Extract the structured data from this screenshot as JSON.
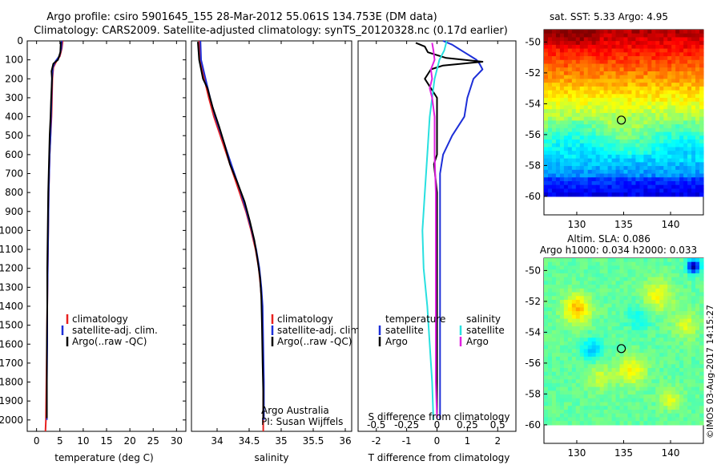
{
  "header": {
    "line1": "Argo profile: csiro 5901645_155 28-Mar-2012 55.061S 134.753E (DM data)",
    "line2": "Climatology: CARS2009. Satellite-adjusted climatology: synTS_20120328.nc (0.17d earlier)"
  },
  "colors": {
    "climatology": "#e8211f",
    "satellite": "#1d2fd8",
    "argo": "#000000",
    "sat_salinity": "#28e0e0",
    "argo_salinity": "#e020e0"
  },
  "watermark": "©IMOS 03-Aug-2017 14:15:27",
  "credits": {
    "line1": "Argo Australia",
    "line2": "PI: Susan Wijffels"
  },
  "chart_data": [
    {
      "id": "temperature",
      "type": "line",
      "xlabel": "temperature (deg C)",
      "ylabel": "",
      "xlim": [
        -2,
        32
      ],
      "ylim": [
        2060,
        0
      ],
      "xticks": [
        0,
        5,
        10,
        15,
        20,
        25,
        30
      ],
      "yticks": [
        0,
        100,
        200,
        300,
        400,
        500,
        600,
        700,
        800,
        900,
        1000,
        1100,
        1200,
        1300,
        1400,
        1500,
        1600,
        1700,
        1800,
        1900,
        2000
      ],
      "legend": [
        "climatology",
        "satellite-adj. clim.",
        "Argo(..raw -QC)"
      ],
      "legend_position": "lower-center",
      "series": [
        {
          "name": "climatology",
          "color_key": "climatology",
          "points": [
            [
              5.6,
              0
            ],
            [
              5.4,
              40
            ],
            [
              5.0,
              80
            ],
            [
              4.2,
              110
            ],
            [
              3.6,
              140
            ],
            [
              3.4,
              200
            ],
            [
              3.3,
              300
            ],
            [
              3.2,
              400
            ],
            [
              3.0,
              500
            ],
            [
              2.8,
              600
            ],
            [
              2.7,
              700
            ],
            [
              2.6,
              800
            ],
            [
              2.5,
              1000
            ],
            [
              2.4,
              1200
            ],
            [
              2.3,
              1400
            ],
            [
              2.2,
              1600
            ],
            [
              2.1,
              1800
            ],
            [
              2.0,
              2000
            ],
            [
              1.9,
              2060
            ]
          ]
        },
        {
          "name": "satellite-adj. clim.",
          "color_key": "satellite",
          "points": [
            [
              5.4,
              0
            ],
            [
              5.3,
              40
            ],
            [
              4.9,
              80
            ],
            [
              4.0,
              110
            ],
            [
              3.5,
              140
            ],
            [
              3.3,
              200
            ],
            [
              3.2,
              300
            ],
            [
              3.1,
              400
            ],
            [
              3.0,
              500
            ],
            [
              2.8,
              600
            ],
            [
              2.7,
              700
            ],
            [
              2.6,
              800
            ],
            [
              2.5,
              1000
            ],
            [
              2.4,
              1200
            ],
            [
              2.3,
              1400
            ],
            [
              2.3,
              1600
            ],
            [
              2.2,
              1800
            ],
            [
              2.2,
              2000
            ]
          ]
        },
        {
          "name": "Argo(..raw -QC)",
          "color_key": "argo",
          "points": [
            [
              5.2,
              5
            ],
            [
              5.1,
              60
            ],
            [
              4.6,
              100
            ],
            [
              3.6,
              120
            ],
            [
              3.2,
              160
            ],
            [
              3.3,
              200
            ],
            [
              3.2,
              260
            ],
            [
              3.1,
              320
            ],
            [
              3.0,
              400
            ],
            [
              2.8,
              500
            ],
            [
              2.7,
              600
            ],
            [
              2.6,
              700
            ],
            [
              2.5,
              800
            ],
            [
              2.4,
              1000
            ],
            [
              2.3,
              1200
            ],
            [
              2.3,
              1400
            ],
            [
              2.2,
              1600
            ],
            [
              2.2,
              1800
            ],
            [
              2.2,
              1990
            ]
          ]
        }
      ]
    },
    {
      "id": "salinity",
      "type": "line",
      "xlabel": "salinity",
      "xlim": [
        33.6,
        36.1
      ],
      "ylim": [
        2060,
        0
      ],
      "xticks": [
        34,
        34.5,
        35,
        35.5,
        36
      ],
      "legend": [
        "climatology",
        "satellite-adj. clim.",
        "Argo(..raw -QC)"
      ],
      "legend_position": "lower-right",
      "series": [
        {
          "name": "climatology",
          "color_key": "climatology",
          "points": [
            [
              33.72,
              0
            ],
            [
              33.74,
              100
            ],
            [
              33.8,
              200
            ],
            [
              33.87,
              300
            ],
            [
              33.95,
              400
            ],
            [
              34.05,
              500
            ],
            [
              34.15,
              600
            ],
            [
              34.25,
              700
            ],
            [
              34.35,
              800
            ],
            [
              34.45,
              900
            ],
            [
              34.53,
              1000
            ],
            [
              34.6,
              1100
            ],
            [
              34.65,
              1200
            ],
            [
              34.68,
              1300
            ],
            [
              34.7,
              1400
            ],
            [
              34.71,
              1600
            ],
            [
              34.72,
              1800
            ],
            [
              34.72,
              2060
            ]
          ]
        },
        {
          "name": "satellite-adj. clim.",
          "color_key": "satellite",
          "points": [
            [
              33.74,
              0
            ],
            [
              33.75,
              100
            ],
            [
              33.82,
              200
            ],
            [
              33.89,
              300
            ],
            [
              33.97,
              400
            ],
            [
              34.07,
              500
            ],
            [
              34.17,
              600
            ],
            [
              34.27,
              700
            ],
            [
              34.37,
              800
            ],
            [
              34.46,
              900
            ],
            [
              34.54,
              1000
            ],
            [
              34.61,
              1100
            ],
            [
              34.66,
              1200
            ],
            [
              34.69,
              1300
            ],
            [
              34.71,
              1400
            ],
            [
              34.72,
              1600
            ],
            [
              34.73,
              1800
            ],
            [
              34.73,
              2000
            ]
          ]
        },
        {
          "name": "Argo(..raw -QC)",
          "color_key": "argo",
          "points": [
            [
              33.7,
              5
            ],
            [
              33.72,
              100
            ],
            [
              33.78,
              200
            ],
            [
              33.85,
              250
            ],
            [
              33.93,
              350
            ],
            [
              34.03,
              450
            ],
            [
              34.12,
              550
            ],
            [
              34.2,
              650
            ],
            [
              34.32,
              750
            ],
            [
              34.43,
              850
            ],
            [
              34.51,
              950
            ],
            [
              34.58,
              1050
            ],
            [
              34.63,
              1150
            ],
            [
              34.67,
              1250
            ],
            [
              34.69,
              1350
            ],
            [
              34.7,
              1500
            ],
            [
              34.71,
              1700
            ],
            [
              34.72,
              1850
            ],
            [
              34.72,
              1990
            ]
          ]
        }
      ]
    },
    {
      "id": "difference",
      "type": "line",
      "xlabel": "T difference from climatology",
      "xlabel_top": "S difference from climatology",
      "xlim": [
        -2.6,
        2.6
      ],
      "ylim": [
        2060,
        0
      ],
      "xticks": [
        -2,
        -1,
        0,
        1,
        2
      ],
      "xticks_top": [
        -0.5,
        -0.25,
        0,
        0.25,
        0.5
      ],
      "xtick_labels_top": [
        "-0.5",
        "-0.25",
        "0",
        "0.25",
        "0.5"
      ],
      "legend_headers": [
        "temperature",
        "salinity"
      ],
      "legend": [
        "satellite",
        "Argo",
        "satellite",
        "Argo"
      ],
      "legend_position": "lower-center",
      "series": [
        {
          "name": "temperature satellite",
          "color_key": "satellite",
          "points": [
            [
              0.2,
              0
            ],
            [
              0.5,
              20
            ],
            [
              0.7,
              40
            ],
            [
              0.9,
              60
            ],
            [
              1.1,
              80
            ],
            [
              1.3,
              100
            ],
            [
              1.4,
              120
            ],
            [
              1.5,
              150
            ],
            [
              1.2,
              200
            ],
            [
              1.0,
              300
            ],
            [
              0.9,
              400
            ],
            [
              0.5,
              500
            ],
            [
              0.2,
              600
            ],
            [
              0.1,
              700
            ],
            [
              0.1,
              900
            ],
            [
              0.1,
              1200
            ],
            [
              0.1,
              1500
            ],
            [
              0.1,
              2000
            ]
          ]
        },
        {
          "name": "temperature Argo",
          "color_key": "argo",
          "points": [
            [
              -0.7,
              10
            ],
            [
              -0.4,
              30
            ],
            [
              -0.3,
              60
            ],
            [
              0.3,
              90
            ],
            [
              1.5,
              110
            ],
            [
              0.2,
              130
            ],
            [
              -0.2,
              150
            ],
            [
              -0.4,
              200
            ],
            [
              -0.2,
              250
            ],
            [
              0.0,
              300
            ],
            [
              0.0,
              400
            ],
            [
              0.0,
              600
            ],
            [
              -0.1,
              650
            ],
            [
              0.0,
              800
            ],
            [
              0.0,
              1000
            ],
            [
              0.0,
              1200
            ],
            [
              0.0,
              1400
            ],
            [
              0.0,
              1600
            ],
            [
              0.0,
              1800
            ],
            [
              0.0,
              1990
            ]
          ]
        },
        {
          "name": "salinity satellite",
          "color_key": "sat_salinity",
          "points": [
            [
              0.08,
              0
            ],
            [
              0.06,
              50
            ],
            [
              0.02,
              100
            ],
            [
              -0.02,
              200
            ],
            [
              -0.06,
              400
            ],
            [
              -0.08,
              600
            ],
            [
              -0.1,
              800
            ],
            [
              -0.12,
              1000
            ],
            [
              -0.11,
              1200
            ],
            [
              -0.08,
              1400
            ],
            [
              -0.06,
              1600
            ],
            [
              -0.04,
              1800
            ],
            [
              -0.03,
              2000
            ]
          ]
        },
        {
          "name": "salinity Argo",
          "color_key": "argo_salinity",
          "points": [
            [
              -0.04,
              10
            ],
            [
              -0.03,
              50
            ],
            [
              -0.02,
              100
            ],
            [
              -0.05,
              150
            ],
            [
              -0.04,
              200
            ],
            [
              -0.06,
              250
            ],
            [
              -0.04,
              300
            ],
            [
              -0.02,
              400
            ],
            [
              -0.02,
              600
            ],
            [
              -0.01,
              800
            ],
            [
              -0.01,
              1000
            ],
            [
              -0.01,
              1200
            ],
            [
              -0.01,
              1400
            ],
            [
              -0.01,
              1600
            ],
            [
              -0.01,
              1800
            ],
            [
              0.0,
              1990
            ]
          ]
        }
      ]
    },
    {
      "id": "sst_map",
      "type": "heatmap",
      "title": "sat. SST: 5.33 Argo: 4.95",
      "xlim": [
        126.5,
        143.5
      ],
      "ylim": [
        -61.2,
        -49.2
      ],
      "xticks": [
        130,
        135,
        140
      ],
      "yticks": [
        -50,
        -52,
        -54,
        -56,
        -58,
        -60
      ],
      "ytick_labels": [
        "-50",
        "-52",
        "-54",
        "-56",
        "-58",
        "-60"
      ],
      "data_extent_lat": [
        -60,
        -49.2
      ],
      "float_position": {
        "lon": 134.753,
        "lat": -55.061
      },
      "colormap": "jet"
    },
    {
      "id": "sla_map",
      "type": "heatmap",
      "title": "Altim. SLA: 0.086",
      "subtitle": "Argo h1000: 0.034 h2000: 0.033",
      "xlim": [
        126.5,
        143.5
      ],
      "ylim": [
        -61.2,
        -49.2
      ],
      "xticks": [
        130,
        135,
        140
      ],
      "yticks": [
        -50,
        -52,
        -54,
        -56,
        -58,
        -60
      ],
      "ytick_labels": [
        "-50",
        "-52",
        "-54",
        "-56",
        "-58",
        "-60"
      ],
      "data_extent_lat": [
        -60,
        -49.2
      ],
      "float_position": {
        "lon": 134.753,
        "lat": -55.061
      },
      "colormap": "jet"
    }
  ]
}
